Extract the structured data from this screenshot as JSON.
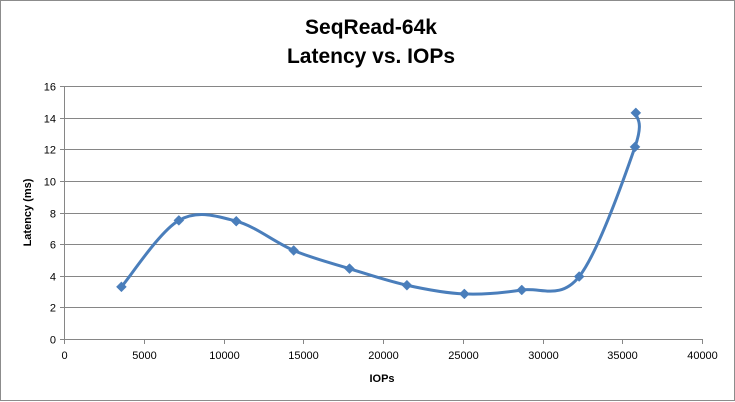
{
  "chart_data": {
    "type": "scatter",
    "title": [
      "SeqRead-64k",
      "Latency vs. IOPs"
    ],
    "xlabel": "IOPs",
    "ylabel": "Latency (ms)",
    "xlim": [
      0,
      40000
    ],
    "ylim": [
      0,
      16
    ],
    "x_ticks": [
      0,
      5000,
      10000,
      15000,
      20000,
      25000,
      30000,
      35000,
      40000
    ],
    "y_ticks": [
      0,
      2,
      4,
      6,
      8,
      10,
      12,
      14,
      16
    ],
    "grid": "horizontal",
    "smoothed": true,
    "marker": "diamond",
    "series": [
      {
        "color": "#4a7ebb",
        "x": [
          3600,
          7200,
          10800,
          14400,
          17900,
          21500,
          25100,
          28700,
          32300,
          35800,
          35850
        ],
        "y": [
          3.3,
          7.5,
          7.45,
          5.6,
          4.45,
          3.4,
          2.85,
          3.1,
          3.95,
          12.15,
          14.3
        ]
      }
    ]
  }
}
